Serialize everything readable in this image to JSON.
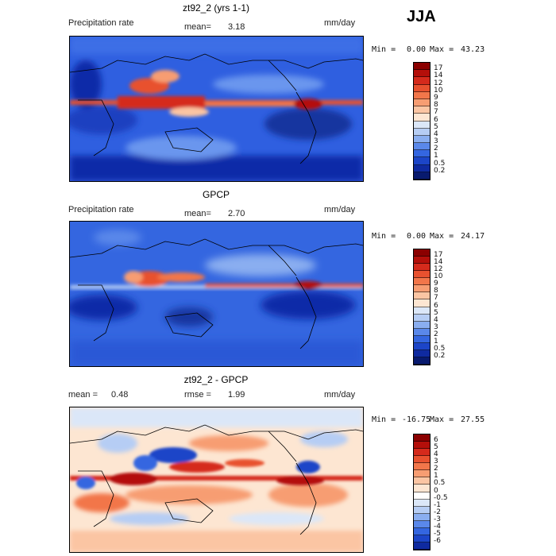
{
  "season": "JJA",
  "panels": [
    {
      "title": "zt92_2 (yrs 1-1)",
      "left_label": "Precipitation rate",
      "mean_label": "mean=",
      "mean_value": "3.18",
      "units": "mm/day",
      "min_label": "Min =",
      "min_value": "0.00",
      "max_label": "Max =",
      "max_value": "43.23",
      "colorbar": {
        "labels": [
          "17",
          "14",
          "12",
          "10",
          "9",
          "8",
          "7",
          "6",
          "5",
          "4",
          "3",
          "2",
          "1",
          "0.5",
          "0.2"
        ],
        "colors": [
          "#8b0000",
          "#b40f0a",
          "#d52a1c",
          "#e8512f",
          "#f2764a",
          "#f79d72",
          "#fbc5a3",
          "#fde6d2",
          "#dbe7f8",
          "#b6cdf4",
          "#8aaef0",
          "#5a88ea",
          "#3466e0",
          "#1c45c8",
          "#0f2aa0",
          "#081a6e"
        ]
      }
    },
    {
      "title": "GPCP",
      "left_label": "Precipitation rate",
      "mean_label": "mean=",
      "mean_value": "2.70",
      "units": "mm/day",
      "min_label": "Min =",
      "min_value": "0.00",
      "max_label": "Max =",
      "max_value": "24.17",
      "colorbar": {
        "labels": [
          "17",
          "14",
          "12",
          "10",
          "9",
          "8",
          "7",
          "6",
          "5",
          "4",
          "3",
          "2",
          "1",
          "0.5",
          "0.2"
        ],
        "colors": [
          "#8b0000",
          "#b40f0a",
          "#d52a1c",
          "#e8512f",
          "#f2764a",
          "#f79d72",
          "#fbc5a3",
          "#fde6d2",
          "#dbe7f8",
          "#b6cdf4",
          "#8aaef0",
          "#5a88ea",
          "#3466e0",
          "#1c45c8",
          "#0f2aa0",
          "#081a6e"
        ]
      }
    },
    {
      "title": "zt92_2 - GPCP",
      "mean_label": "mean =",
      "mean_value": "0.48",
      "rmse_label": "rmse =",
      "rmse_value": "1.99",
      "units": "mm/day",
      "min_label": "Min =",
      "min_value": "-16.75",
      "max_label": "Max =",
      "max_value": "27.55",
      "colorbar": {
        "labels": [
          "6",
          "5",
          "4",
          "3",
          "2",
          "1",
          "0.5",
          "0",
          "-0.5",
          "-1",
          "-2",
          "-3",
          "-4",
          "-5",
          "-6"
        ],
        "colors": [
          "#8b0000",
          "#b40f0a",
          "#d52a1c",
          "#e8512f",
          "#f2764a",
          "#f79d72",
          "#fbc5a3",
          "#fde6d2",
          "#ffffff",
          "#dbe7f8",
          "#b6cdf4",
          "#8aaef0",
          "#5a88ea",
          "#3466e0",
          "#1c45c8",
          "#0f2aa0"
        ]
      }
    }
  ]
}
